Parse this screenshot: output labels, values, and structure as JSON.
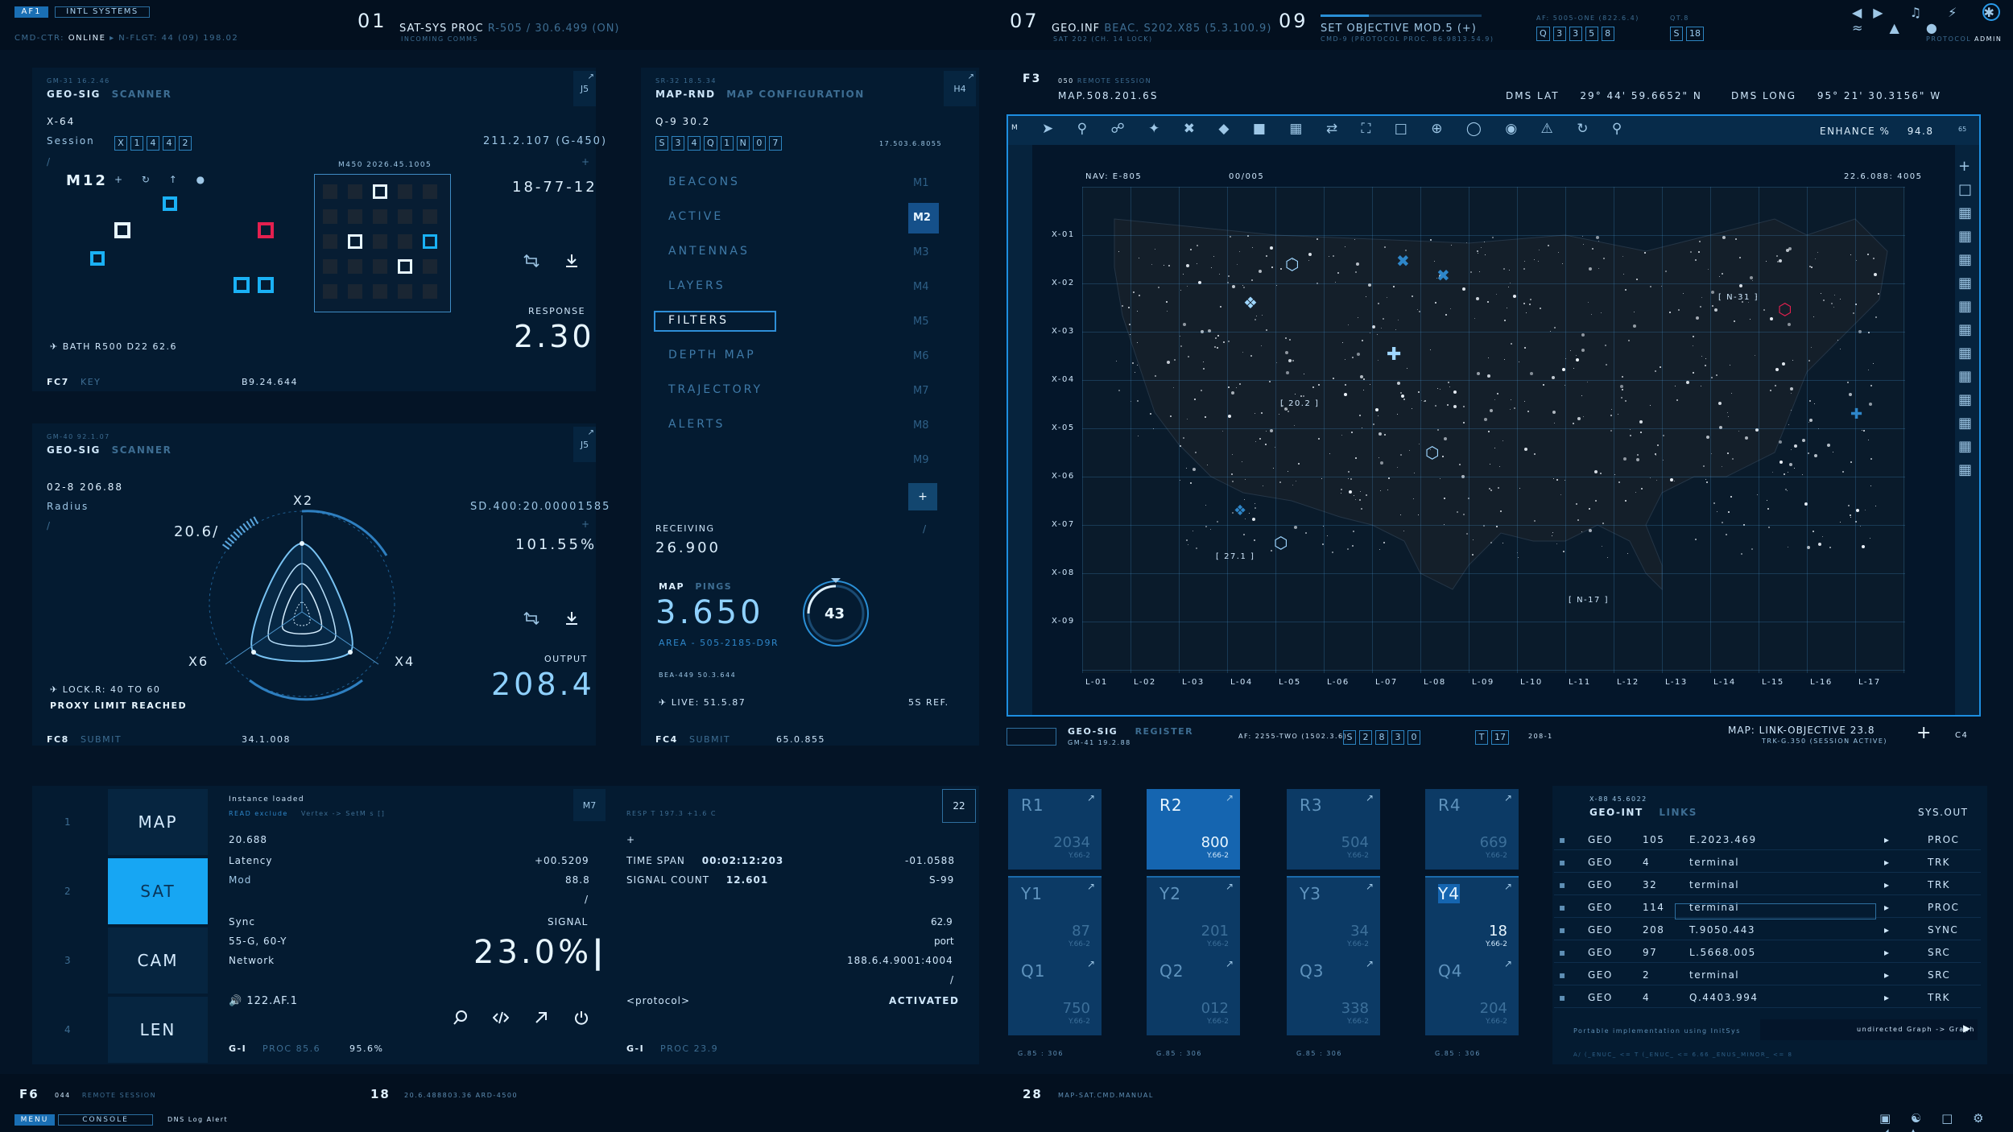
{
  "topbar": {
    "badge1": "AF1",
    "badge2": "INTL SYSTEMS",
    "cmd_ctr_label": "CMD-CTR:",
    "cmd_ctr_value": "ONLINE",
    "nflgt": "N-FLGT: 44 (09) 198.02",
    "s01_num": "01",
    "s01_title": "SAT-SYS PROC",
    "s01_value": "R-505 / 30.6.499 (ON)",
    "s01_sub": "INCOMING COMMS",
    "s07_num": "07",
    "s07_title": "GEO.INF",
    "s07_value": "BEAC. S202.X85 (5.3.100.9)",
    "s07_sub": "SAT 202 (CH. 14 LOCK)",
    "s09_num": "09",
    "s09_title": "SET OBJECTIVE MOD.5 (+)",
    "s09_sub": "CMD-9 (PROTOCOL PROC. 86.9813.54.9)",
    "af_label": "AF: 5005-ONE (822.6.4)",
    "af_boxes": [
      "Q",
      "3",
      "3",
      "5",
      "8"
    ],
    "qt_label": "QT.8",
    "qt_boxes": [
      "S",
      "18"
    ],
    "protocol": "PROTOCOL",
    "admin": "ADMIN"
  },
  "geo1": {
    "tag": "GM-31 16.2.46",
    "title": "GEO-SIG",
    "subtitle": "SCANNER",
    "corner": "J5",
    "x64": "X-64",
    "session_label": "Session",
    "session_boxes": [
      "X",
      "1",
      "4",
      "4",
      "2"
    ],
    "coord": "211.2.107 (G-450)",
    "m12": "M12",
    "grid_label": "M450 2026.45.1005",
    "code": "18-77-12",
    "bath": "BATH R500 D22 62.6",
    "response_label": "RESPONSE",
    "response_value": "2.30",
    "fc7": "FC7",
    "key": "KEY",
    "bottom_val": "B9.24.644"
  },
  "geo2": {
    "tag": "GM-40 92.1.07",
    "title": "GEO-SIG",
    "subtitle": "SCANNER",
    "corner": "J5",
    "code": "02-8 206.88",
    "radius_label": "Radius",
    "sd": "SD.400:20.00001585",
    "percent": "101.55%",
    "angle": "20.6/",
    "x2": "X2",
    "x4": "X4",
    "x6": "X6",
    "lock": "LOCK.R: 40 TO 60",
    "proxy": "PROXY LIMIT REACHED",
    "output_label": "OUTPUT",
    "output_value": "208.4",
    "fc8": "FC8",
    "submit": "SUBMIT",
    "bottom_val": "34.1.008"
  },
  "mapcfg": {
    "tag": "SR-32 18.5.34",
    "title": "MAP-RND",
    "subtitle": "MAP CONFIGURATION",
    "corner": "H4",
    "q9": "Q-9 30.2",
    "boxes": [
      "S",
      "3",
      "4",
      "Q",
      "1",
      "N",
      "0",
      "7"
    ],
    "ref": "17.503.6.8055",
    "menu": [
      "BEACONS",
      "ACTIVE",
      "ANTENNAS",
      "LAYERS",
      "FILTERS",
      "DEPTH MAP",
      "TRAJECTORY",
      "ALERTS"
    ],
    "mcodes": [
      "M1",
      "M2",
      "M3",
      "M4",
      "M5",
      "M6",
      "M7",
      "M8",
      "M9"
    ],
    "receiving_label": "RECEIVING",
    "receiving_value": "26.900",
    "map_label": "MAP",
    "pings_label": "PINGS",
    "pings_value": "3.650",
    "area": "AREA - 505-2185-D9R",
    "dial": "43",
    "bea": "BEA-449 50.3.644",
    "live": "LIVE: 51.5.87",
    "ref2": "5S REF.",
    "fc4": "FC4",
    "submit": "SUBMIT",
    "bottom_val": "65.0.855"
  },
  "map": {
    "f3": "F3",
    "tag": "050",
    "session": "REMOTE SESSION",
    "coord": "MAP.508.201.6S",
    "dms_lat_label": "DMS LAT",
    "dms_lat": "29° 44' 59.6652\" N",
    "dms_long_label": "DMS LONG",
    "dms_long": "95° 21' 30.3156\" W",
    "enhance_label": "ENHANCE %",
    "enhance": "94.8",
    "nav": "NAV: E-805",
    "count": "00/005",
    "scale_right": "22.6.088: 4005",
    "rows": [
      "X-01",
      "X-02",
      "X-03",
      "X-04",
      "X-05",
      "X-06",
      "X-07",
      "X-08",
      "X-09"
    ],
    "cols": [
      "L-01",
      "L-02",
      "L-03",
      "L-04",
      "L-05",
      "L-06",
      "L-07",
      "L-08",
      "L-09",
      "L-10",
      "L-11",
      "L-12",
      "L-13",
      "L-14",
      "L-15",
      "L-16",
      "L-17"
    ],
    "labels": [
      "[ 27.1 ]",
      "[ N-17 ]",
      "[ N-31 ]",
      "[ 20.2 ]"
    ],
    "bottom_geo": "GEO-SIG",
    "register": "REGISTER",
    "gm": "GM-41 19.2.88",
    "af": "AF: 2255-TWO (1502.3.6)",
    "af_boxes": [
      "S",
      "2",
      "8",
      "3",
      "0"
    ],
    "t_boxes": [
      "T",
      "17"
    ],
    "t_ref": "208-1",
    "link": "MAP: LINK-OBJECTIVE 23.8",
    "link_sub": "TRK-G.350 (SESSION ACTIVE)",
    "c4": "C4"
  },
  "sidebar": {
    "items": [
      {
        "num": "1",
        "label": "MAP"
      },
      {
        "num": "2",
        "label": "SAT"
      },
      {
        "num": "3",
        "label": "CAM"
      },
      {
        "num": "4",
        "label": "LEN"
      }
    ]
  },
  "instance": {
    "title": "Instance loaded",
    "sub1": "READ exclude",
    "sub2": "Vertex -> SetM s []",
    "corner": "M7",
    "v1": "20.688",
    "latency": "Latency",
    "latency_v": "+00.5209",
    "mod": "Mod",
    "mod_v": "88.8",
    "sync": "Sync",
    "signal": "SIGNAL",
    "sync_sub": "55-G, 60-Y",
    "network": "Network",
    "signal_value": "23.0%",
    "af": "122.AF.1",
    "g1": "G-I",
    "proc": "PROC 85.6",
    "proc_pct": "95.6%"
  },
  "timespan": {
    "tag": "RESP T 197.3 +1.6 C",
    "corner": "22",
    "ts_label": "TIME SPAN",
    "ts_value": "00:02:12:203",
    "ts_right": "-01.0588",
    "sc_label": "SIGNAL COUNT",
    "sc_value": "12.601",
    "sc_right": "S-99",
    "r3": "62.9",
    "r4": "port",
    "r5": "188.6.4.9001:4004",
    "protocol": "<protocol>",
    "activated": "ACTIVATED",
    "g1": "G-I",
    "proc": "PROC 23.9"
  },
  "tiles": {
    "cols": [
      {
        "top": "R1",
        "topv": "2034",
        "mid": "Y1",
        "midv": "87",
        "bot": "Q1",
        "botv": "750"
      },
      {
        "top": "R2",
        "topv": "800",
        "mid": "Y2",
        "midv": "201",
        "bot": "Q2",
        "botv": "012"
      },
      {
        "top": "R3",
        "topv": "504",
        "mid": "Y3",
        "midv": "34",
        "bot": "Q3",
        "botv": "338"
      },
      {
        "top": "R4",
        "topv": "669",
        "mid": "Y4",
        "midv": "18",
        "bot": "Q4",
        "botv": "204"
      }
    ],
    "sub": "Y.66-2",
    "footer": "G.85 : 306"
  },
  "geoint": {
    "tag": "X-88 45.6022",
    "title": "GEO-INT",
    "subtitle": "LINKS",
    "out": "SYS.OUT",
    "rows": [
      {
        "a": "GEO",
        "b": "105",
        "c": "E.2023.469",
        "d": "PROC"
      },
      {
        "a": "GEO",
        "b": "4",
        "c": "terminal",
        "d": "TRK"
      },
      {
        "a": "GEO",
        "b": "32",
        "c": "terminal",
        "d": "TRK"
      },
      {
        "a": "GEO",
        "b": "114",
        "c": "terminal",
        "d": "PROC"
      },
      {
        "a": "GEO",
        "b": "208",
        "c": "T.9050.443",
        "d": "SYNC"
      },
      {
        "a": "GEO",
        "b": "97",
        "c": "L.5668.005",
        "d": "SRC"
      },
      {
        "a": "GEO",
        "b": "2",
        "c": "terminal",
        "d": "SRC"
      },
      {
        "a": "GEO",
        "b": "4",
        "c": "Q.4403.994",
        "d": "TRK"
      }
    ],
    "foot1": "Portable implementation using InitSys",
    "foot2": "undirected Graph -> Graph",
    "foot3": "A/ (_ENUC_ <= T (_ENUC_ <= 6.66 _ENUS_MINOR_ <= 8"
  },
  "status": {
    "f6": "F6",
    "f6_tag": "044",
    "f6_session": "REMOTE SESSION",
    "n18": "18",
    "n18_v": "20.6.488803.36 ARD-4500",
    "n28": "28",
    "n28_v": "MAP-SAT.CMD.MANUAL",
    "menu": "MENU",
    "console": "CONSOLE",
    "alert": "DNS Log Alert"
  }
}
